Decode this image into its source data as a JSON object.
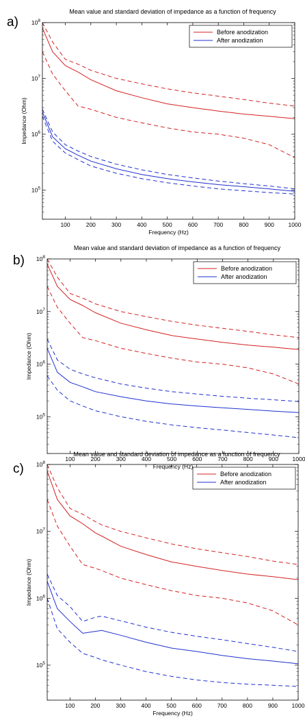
{
  "colors": {
    "before": "#d42020",
    "after": "#1f2fd0",
    "axis": "#000000",
    "background": "#ffffff"
  },
  "chart_data": [
    {
      "panel_label": "a)",
      "type": "line",
      "title": "Mean value and standard deviation of impedance as a function of frequency",
      "xlabel": "Frequency (Hz)",
      "ylabel": "Impedance (Ohm)",
      "xlim": [
        10,
        1000
      ],
      "ylim": [
        30000,
        100000000
      ],
      "yscale": "log",
      "xticks": [
        "100",
        "200",
        "300",
        "400",
        "500",
        "600",
        "700",
        "800",
        "900",
        "1000"
      ],
      "yticks": [
        "10^5",
        "10^6",
        "10^7",
        "10^8"
      ],
      "legend": {
        "position": "top-right",
        "entries": [
          "Before anodization",
          "After anodization"
        ]
      },
      "x": [
        10,
        50,
        100,
        150,
        200,
        300,
        400,
        500,
        600,
        700,
        800,
        900,
        1000
      ],
      "series": [
        {
          "name": "Before anodization",
          "style": "solid",
          "group": "before",
          "values": [
            80000000,
            30000000,
            17000000,
            13000000,
            9500000,
            6000000,
            4500000,
            3500000,
            3000000,
            2600000,
            2300000,
            2100000,
            1900000
          ]
        },
        {
          "style": "dashed",
          "group": "before",
          "values": [
            100000000,
            45000000,
            22000000,
            18000000,
            14000000,
            10000000,
            8000000,
            6500000,
            5500000,
            4800000,
            4200000,
            3600000,
            3200000
          ]
        },
        {
          "style": "dashed",
          "group": "before",
          "values": [
            30000000,
            12000000,
            6000000,
            3200000,
            2800000,
            2000000,
            1600000,
            1300000,
            1100000,
            1000000,
            850000,
            650000,
            380000
          ]
        },
        {
          "name": "After anodization",
          "style": "solid",
          "group": "after",
          "values": [
            2500000,
            900000,
            550000,
            420000,
            330000,
            240000,
            190000,
            160000,
            140000,
            125000,
            115000,
            105000,
            95000
          ]
        },
        {
          "style": "dashed",
          "group": "after",
          "values": [
            2800000,
            1100000,
            650000,
            500000,
            400000,
            290000,
            230000,
            190000,
            165000,
            145000,
            130000,
            118000,
            105000
          ]
        },
        {
          "style": "dashed",
          "group": "after",
          "values": [
            2100000,
            750000,
            460000,
            350000,
            270000,
            200000,
            160000,
            135000,
            118000,
            105000,
            97000,
            90000,
            85000
          ]
        }
      ]
    },
    {
      "panel_label": "b)",
      "type": "line",
      "title": "Mean value and standard deviation of impedance as a function of frequency",
      "xlabel": "Frequency (Hz)",
      "ylabel": "Impedance (Ohm)",
      "xlim": [
        10,
        1000
      ],
      "ylim": [
        20000,
        100000000
      ],
      "yscale": "log",
      "xticks": [
        "100",
        "200",
        "300",
        "400",
        "500",
        "600",
        "700",
        "800",
        "900",
        "1000"
      ],
      "yticks": [
        "10^5",
        "10^6",
        "10^7",
        "10^8"
      ],
      "legend": {
        "position": "top-right",
        "entries": [
          "Before anodization",
          "After anodization"
        ]
      },
      "x": [
        10,
        50,
        100,
        150,
        200,
        300,
        400,
        500,
        600,
        700,
        800,
        900,
        1000
      ],
      "series": [
        {
          "name": "Before anodization",
          "style": "solid",
          "group": "before",
          "values": [
            80000000,
            30000000,
            17000000,
            13000000,
            9500000,
            6000000,
            4500000,
            3500000,
            3000000,
            2600000,
            2300000,
            2100000,
            1900000
          ]
        },
        {
          "style": "dashed",
          "group": "before",
          "values": [
            100000000,
            45000000,
            22000000,
            18000000,
            14000000,
            10000000,
            8000000,
            6500000,
            5500000,
            4800000,
            4200000,
            3600000,
            3200000
          ]
        },
        {
          "style": "dashed",
          "group": "before",
          "values": [
            30000000,
            12000000,
            6000000,
            3200000,
            2800000,
            2000000,
            1600000,
            1300000,
            1100000,
            1000000,
            850000,
            650000,
            420000
          ]
        },
        {
          "name": "After anodization",
          "style": "solid",
          "group": "after",
          "values": [
            2000000,
            700000,
            450000,
            370000,
            300000,
            240000,
            200000,
            175000,
            160000,
            148000,
            138000,
            128000,
            120000
          ]
        },
        {
          "style": "dashed",
          "group": "after",
          "values": [
            3000000,
            1200000,
            800000,
            650000,
            550000,
            420000,
            350000,
            300000,
            270000,
            245000,
            225000,
            210000,
            195000
          ]
        },
        {
          "style": "dashed",
          "group": "after",
          "values": [
            600000,
            320000,
            200000,
            160000,
            130000,
            100000,
            82000,
            70000,
            62000,
            56000,
            50000,
            45000,
            40000
          ]
        }
      ]
    },
    {
      "panel_label": "c)",
      "type": "line",
      "title": "Mean value and standard deviation of impedance as a function of frequency",
      "xlabel": "Frequency (Hz)",
      "ylabel": "Impedance (Ohm)",
      "xlim": [
        10,
        1000
      ],
      "ylim": [
        30000,
        100000000
      ],
      "yscale": "log",
      "xticks": [
        "100",
        "200",
        "300",
        "400",
        "500",
        "600",
        "700",
        "800",
        "900",
        "1000"
      ],
      "yticks": [
        "10^5",
        "10^6",
        "10^7",
        "10^8"
      ],
      "legend": {
        "position": "top-right",
        "entries": [
          "Before anodization",
          "After anodization"
        ]
      },
      "x": [
        10,
        50,
        100,
        150,
        200,
        225,
        300,
        400,
        500,
        600,
        700,
        800,
        900,
        1000
      ],
      "series": [
        {
          "name": "Before anodization",
          "style": "solid",
          "group": "before",
          "values": [
            80000000,
            30000000,
            17000000,
            13000000,
            9500000,
            8500000,
            6000000,
            4500000,
            3500000,
            3000000,
            2600000,
            2300000,
            2100000,
            1900000
          ]
        },
        {
          "style": "dashed",
          "group": "before",
          "values": [
            100000000,
            45000000,
            22000000,
            18000000,
            14000000,
            12500000,
            10000000,
            8000000,
            6500000,
            5500000,
            4800000,
            4200000,
            3600000,
            3200000
          ]
        },
        {
          "style": "dashed",
          "group": "before",
          "values": [
            30000000,
            12000000,
            6000000,
            3200000,
            2800000,
            2600000,
            2000000,
            1600000,
            1300000,
            1100000,
            1000000,
            850000,
            650000,
            400000
          ]
        },
        {
          "name": "After anodization",
          "style": "solid",
          "group": "after",
          "values": [
            1800000,
            700000,
            450000,
            300000,
            320000,
            330000,
            280000,
            220000,
            180000,
            160000,
            140000,
            125000,
            115000,
            105000
          ]
        },
        {
          "style": "dashed",
          "group": "after",
          "values": [
            2300000,
            1100000,
            750000,
            450000,
            520000,
            540000,
            460000,
            370000,
            310000,
            270000,
            240000,
            210000,
            185000,
            160000
          ]
        },
        {
          "style": "dashed",
          "group": "after",
          "values": [
            1000000,
            350000,
            220000,
            150000,
            130000,
            120000,
            100000,
            80000,
            68000,
            60000,
            55000,
            52000,
            50000,
            48000
          ]
        }
      ]
    }
  ]
}
